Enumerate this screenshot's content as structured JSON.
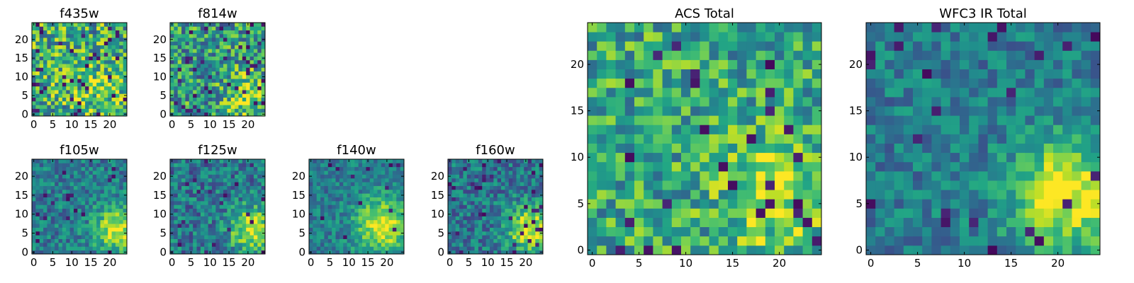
{
  "chart_data": [
    {
      "type": "heatmap",
      "title": "f435w",
      "colormap": "viridis",
      "grid_size": [
        25,
        25
      ],
      "xlim": [
        -0.5,
        24.5
      ],
      "ylim": [
        -0.5,
        24.5
      ],
      "x_ticks": [
        0,
        5,
        10,
        15,
        20
      ],
      "y_ticks": [
        0,
        5,
        10,
        15,
        20
      ],
      "pattern": {
        "seed": 11,
        "base": 0.62,
        "noise": 0.7,
        "blob_strength": 0.15,
        "blob_center": [
          17,
          6
        ],
        "blob_sigma": 5,
        "cold_pixels": 0.06
      }
    },
    {
      "type": "heatmap",
      "title": "f814w",
      "colormap": "viridis",
      "grid_size": [
        25,
        25
      ],
      "xlim": [
        -0.5,
        24.5
      ],
      "ylim": [
        -0.5,
        24.5
      ],
      "x_ticks": [
        0,
        5,
        10,
        15,
        20
      ],
      "y_ticks": [
        0,
        5,
        10,
        15,
        20
      ],
      "pattern": {
        "seed": 23,
        "base": 0.55,
        "noise": 0.65,
        "blob_strength": 0.35,
        "blob_center": [
          20,
          5
        ],
        "blob_sigma": 4,
        "cold_pixels": 0.06
      }
    },
    {
      "type": "heatmap",
      "title": "f105w",
      "colormap": "viridis",
      "grid_size": [
        25,
        25
      ],
      "xlim": [
        -0.5,
        24.5
      ],
      "ylim": [
        -0.5,
        24.5
      ],
      "x_ticks": [
        0,
        5,
        10,
        15,
        20
      ],
      "y_ticks": [
        0,
        5,
        10,
        15,
        20
      ],
      "pattern": {
        "seed": 37,
        "base": 0.42,
        "noise": 0.4,
        "blob_strength": 0.55,
        "blob_center": [
          22,
          6
        ],
        "blob_sigma": 4,
        "cold_pixels": 0.03
      }
    },
    {
      "type": "heatmap",
      "title": "f125w",
      "colormap": "viridis",
      "grid_size": [
        25,
        25
      ],
      "xlim": [
        -0.5,
        24.5
      ],
      "ylim": [
        -0.5,
        24.5
      ],
      "x_ticks": [
        0,
        5,
        10,
        15,
        20
      ],
      "y_ticks": [
        0,
        5,
        10,
        15,
        20
      ],
      "pattern": {
        "seed": 41,
        "base": 0.4,
        "noise": 0.45,
        "blob_strength": 0.55,
        "blob_center": [
          21,
          6
        ],
        "blob_sigma": 4,
        "cold_pixels": 0.04
      }
    },
    {
      "type": "heatmap",
      "title": "f140w",
      "colormap": "viridis",
      "grid_size": [
        25,
        25
      ],
      "xlim": [
        -0.5,
        24.5
      ],
      "ylim": [
        -0.5,
        24.5
      ],
      "x_ticks": [
        0,
        5,
        10,
        15,
        20
      ],
      "y_ticks": [
        0,
        5,
        10,
        15,
        20
      ],
      "pattern": {
        "seed": 53,
        "base": 0.42,
        "noise": 0.35,
        "blob_strength": 0.55,
        "blob_center": [
          19,
          7
        ],
        "blob_sigma": 5,
        "cold_pixels": 0.02
      }
    },
    {
      "type": "heatmap",
      "title": "f160w",
      "colormap": "viridis",
      "grid_size": [
        25,
        25
      ],
      "xlim": [
        -0.5,
        24.5
      ],
      "ylim": [
        -0.5,
        24.5
      ],
      "x_ticks": [
        0,
        5,
        10,
        15,
        20
      ],
      "y_ticks": [
        0,
        5,
        10,
        15,
        20
      ],
      "pattern": {
        "seed": 67,
        "base": 0.4,
        "noise": 0.42,
        "blob_strength": 0.6,
        "blob_center": [
          21,
          6
        ],
        "blob_sigma": 4,
        "cold_pixels": 0.05
      }
    },
    {
      "type": "heatmap",
      "title": "ACS Total",
      "colormap": "viridis",
      "grid_size": [
        25,
        25
      ],
      "xlim": [
        -0.5,
        24.5
      ],
      "ylim": [
        -0.5,
        24.5
      ],
      "x_ticks": [
        0,
        5,
        10,
        15,
        20
      ],
      "y_ticks": [
        0,
        5,
        10,
        15,
        20
      ],
      "pattern": {
        "seed": 79,
        "base": 0.6,
        "noise": 0.55,
        "blob_strength": 0.3,
        "blob_center": [
          20,
          6
        ],
        "blob_sigma": 4,
        "cold_pixels": 0.05
      }
    },
    {
      "type": "heatmap",
      "title": "WFC3 IR Total",
      "colormap": "viridis",
      "grid_size": [
        25,
        25
      ],
      "xlim": [
        -0.5,
        24.5
      ],
      "ylim": [
        -0.5,
        24.5
      ],
      "x_ticks": [
        0,
        5,
        10,
        15,
        20
      ],
      "y_ticks": [
        0,
        5,
        10,
        15,
        20
      ],
      "pattern": {
        "seed": 97,
        "base": 0.42,
        "noise": 0.35,
        "blob_strength": 0.6,
        "blob_center": [
          21,
          6
        ],
        "blob_sigma": 4,
        "cold_pixels": 0.04
      }
    }
  ]
}
